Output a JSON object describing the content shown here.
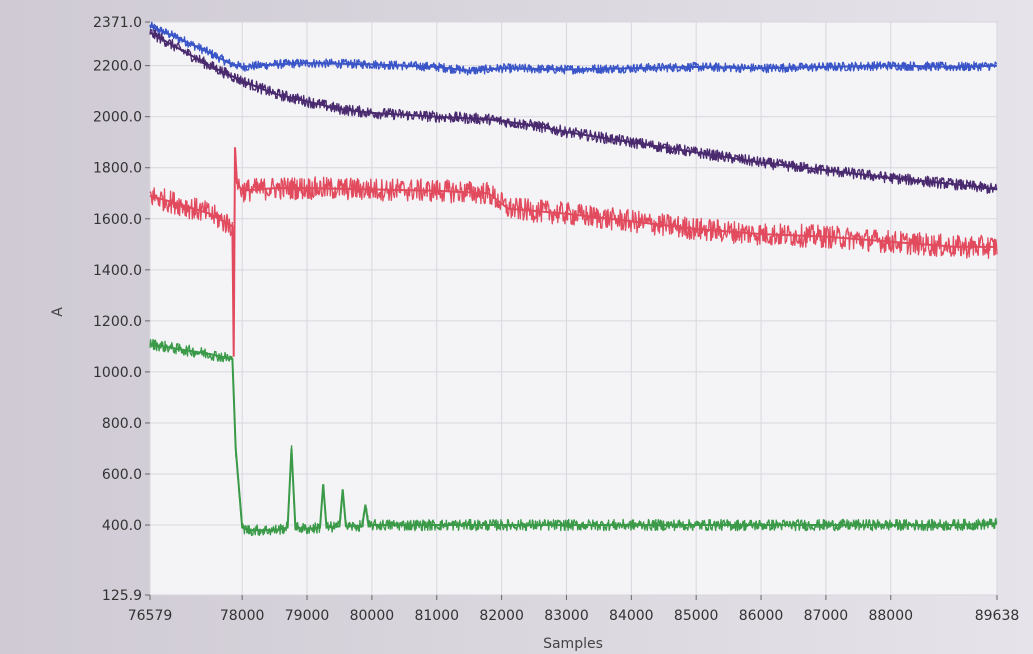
{
  "chart_data": {
    "type": "line",
    "xlabel": "Samples",
    "ylabel": "A",
    "xlim": [
      76579,
      89638
    ],
    "ylim": [
      125.9,
      2371.0
    ],
    "grid": true,
    "x_ticks": [
      76579,
      78000,
      79000,
      80000,
      81000,
      82000,
      83000,
      84000,
      85000,
      86000,
      87000,
      88000,
      89638
    ],
    "x_tick_labels": [
      "76579",
      "78000",
      "79000",
      "80000",
      "81000",
      "82000",
      "83000",
      "84000",
      "85000",
      "86000",
      "87000",
      "88000",
      "89638"
    ],
    "y_ticks": [
      125.9,
      400.0,
      600.0,
      800.0,
      1000.0,
      1200.0,
      1400.0,
      1600.0,
      1800.0,
      2000.0,
      2200.0,
      2371.0
    ],
    "y_tick_labels": [
      "125.9",
      "400.0",
      "600.0",
      "800.0",
      "1000.0",
      "1200.0",
      "1400.0",
      "1600.0",
      "1800.0",
      "2000.0",
      "2200.0",
      "2371.0"
    ],
    "series": [
      {
        "color": "#3a55c8",
        "x": [
          76579,
          77000,
          77500,
          77800,
          78000,
          78500,
          79000,
          80000,
          81000,
          81500,
          82000,
          83000,
          84000,
          85000,
          86000,
          87000,
          88000,
          89000,
          89638
        ],
        "y": [
          2355,
          2310,
          2250,
          2210,
          2195,
          2205,
          2210,
          2205,
          2195,
          2180,
          2190,
          2185,
          2190,
          2195,
          2190,
          2195,
          2200,
          2195,
          2200
        ],
        "noise": 18
      },
      {
        "color": "#4a2a6e",
        "x": [
          76579,
          77000,
          77500,
          78000,
          78500,
          79000,
          79500,
          80000,
          81000,
          81800,
          82500,
          83000,
          84000,
          85000,
          86000,
          87000,
          88000,
          89000,
          89638
        ],
        "y": [
          2330,
          2270,
          2200,
          2140,
          2090,
          2060,
          2030,
          2015,
          2000,
          1990,
          1965,
          1940,
          1900,
          1860,
          1820,
          1790,
          1760,
          1735,
          1715
        ],
        "noise": 22
      },
      {
        "color": "#e24a5e",
        "x": [
          76579,
          77000,
          77500,
          77850,
          77870,
          77890,
          77920,
          78000,
          78500,
          79000,
          80000,
          81000,
          81800,
          82100,
          83000,
          84000,
          85000,
          86000,
          87000,
          88000,
          89000,
          89638
        ],
        "y": [
          1690,
          1660,
          1620,
          1570,
          1060,
          1880,
          1740,
          1710,
          1720,
          1720,
          1715,
          1710,
          1700,
          1640,
          1620,
          1590,
          1560,
          1540,
          1530,
          1510,
          1490,
          1490
        ],
        "noise": 45
      },
      {
        "color": "#3a9a48",
        "x": [
          76579,
          77000,
          77500,
          77850,
          77900,
          78000,
          78100,
          78500,
          78700,
          78760,
          78820,
          79000,
          79200,
          79250,
          79300,
          79500,
          79550,
          79600,
          79850,
          79900,
          79950,
          80000,
          81000,
          82000,
          83000,
          84000,
          85000,
          86000,
          87000,
          88000,
          89000,
          89638
        ],
        "y": [
          1110,
          1090,
          1070,
          1050,
          700,
          390,
          380,
          380,
          390,
          700,
          390,
          385,
          390,
          560,
          390,
          395,
          540,
          395,
          395,
          480,
          395,
          400,
          400,
          400,
          400,
          400,
          400,
          400,
          400,
          400,
          400,
          405
        ],
        "noise": 22
      }
    ]
  }
}
